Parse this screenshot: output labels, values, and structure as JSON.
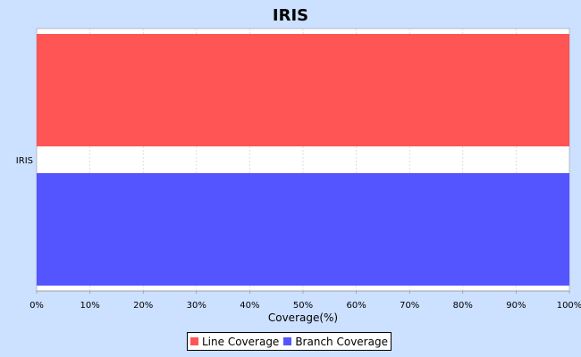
{
  "chart_data": {
    "type": "bar",
    "orientation": "horizontal",
    "title": "IRIS",
    "categories": [
      "IRIS"
    ],
    "series": [
      {
        "name": "Line Coverage",
        "values": [
          100
        ],
        "color": "#ff5555"
      },
      {
        "name": "Branch Coverage",
        "values": [
          100
        ],
        "color": "#5555ff"
      }
    ],
    "xlabel": "Coverage(%)",
    "ylabel": "",
    "xlim": [
      0,
      100
    ],
    "xticks": [
      "0%",
      "10%",
      "20%",
      "30%",
      "40%",
      "50%",
      "60%",
      "70%",
      "80%",
      "90%",
      "100%"
    ],
    "grid": true,
    "legend_position": "bottom"
  }
}
